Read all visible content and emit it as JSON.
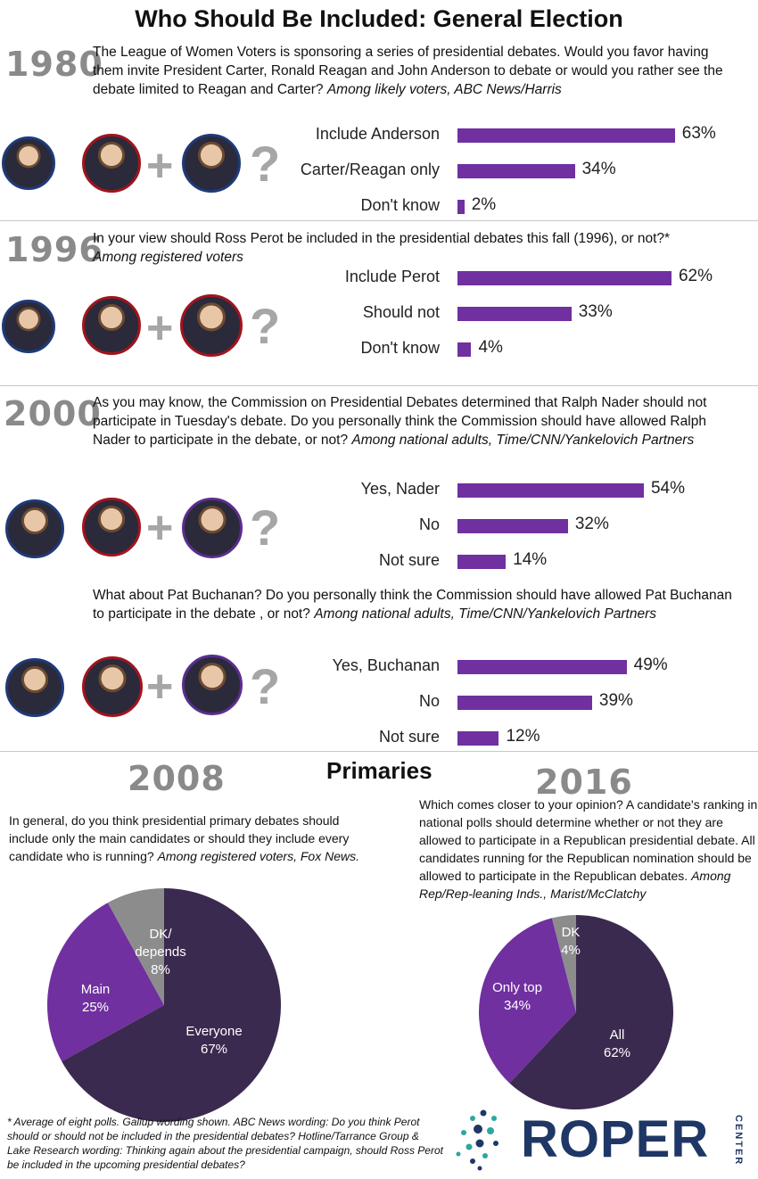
{
  "title": "Who Should Be Included: General Election",
  "sections": [
    {
      "year": "1980",
      "question": "The League of Women Voters is sponsoring a series of presidential debates. Would you favor having them invite President Carter, Ronald Reagan and John Anderson to debate or would you rather see the debate limited to Reagan and Carter?",
      "source": "Among likely voters, ABC News/Harris"
    },
    {
      "year": "1996",
      "question": "In your view should Ross Perot be included in the presidential debates this fall (1996), or not?*",
      "source": "Among registered voters"
    },
    {
      "year": "2000",
      "question": "As you may know, the Commission on Presidential Debates determined that Ralph Nader should not participate in Tuesday's debate. Do you personally think the Commission should have allowed Ralph Nader to participate in the debate, or not?",
      "source": "Among national adults, Time/CNN/Yankelovich Partners"
    },
    {
      "year": "",
      "question": "What about Pat Buchanan? Do you personally think the Commission should have allowed Pat Buchanan to participate in the debate , or not?",
      "source": "Among national adults, Time/CNN/Yankelovich Partners"
    }
  ],
  "primaries": {
    "title": "Primaries",
    "left_year": "2008",
    "left_question": "In general, do you think presidential primary debates should include only the main candidates or should they include every candidate who is running?",
    "left_source": "Among registered voters, Fox News.",
    "right_year": "2016",
    "right_question": "Which comes closer to your opinion? A candidate's ranking in national polls should determine whether or not they are allowed to participate in a Republican presidential debate. All candidates running for the Republican nomination should be allowed to participate in the Republican debates.",
    "right_source": "Among Rep/Rep-leaning Inds., Marist/McClatchy"
  },
  "chart_data": [
    {
      "type": "bar",
      "orientation": "horizontal",
      "categories": [
        "Include Anderson",
        "Carter/Reagan only",
        "Don't know"
      ],
      "values": [
        63,
        34,
        2
      ],
      "value_suffix": "%",
      "color": "#7030a0"
    },
    {
      "type": "bar",
      "orientation": "horizontal",
      "categories": [
        "Include Perot",
        "Should not",
        "Don't know"
      ],
      "values": [
        62,
        33,
        4
      ],
      "value_suffix": "%",
      "color": "#7030a0"
    },
    {
      "type": "bar",
      "orientation": "horizontal",
      "categories": [
        "Yes, Nader",
        "No",
        "Not sure"
      ],
      "values": [
        54,
        32,
        14
      ],
      "value_suffix": "%",
      "color": "#7030a0"
    },
    {
      "type": "bar",
      "orientation": "horizontal",
      "categories": [
        "Yes, Buchanan",
        "No",
        "Not sure"
      ],
      "values": [
        49,
        39,
        12
      ],
      "value_suffix": "%",
      "color": "#7030a0"
    },
    {
      "type": "pie",
      "slices": [
        {
          "label_line1": "Everyone",
          "label_line2": "67%",
          "value": 67,
          "color": "#3b2a4f"
        },
        {
          "label_line1": "Main",
          "label_line2": "25%",
          "value": 25,
          "color": "#7030a0"
        },
        {
          "label_line1": "DK/",
          "label_line2": "depends",
          "label_line3": "8%",
          "value": 8,
          "color": "#8c8c8c"
        }
      ]
    },
    {
      "type": "pie",
      "slices": [
        {
          "label_line1": "All",
          "label_line2": "62%",
          "value": 62,
          "color": "#3b2a4f"
        },
        {
          "label_line1": "Only top",
          "label_line2": "34%",
          "value": 34,
          "color": "#7030a0"
        },
        {
          "label_line1": "DK",
          "label_line2": "4%",
          "value": 4,
          "color": "#8c8c8c"
        }
      ]
    }
  ],
  "footnote": "* Average of eight polls. Gallup wording shown. ABC News wording: Do you think Perot should or should not be included in the presidential debates? Hotline/Tarrance Group & Lake Research wording: Thinking again about the presidential campaign, should Ross Perot be included in the upcoming presidential debates?",
  "logo": {
    "text": "ROPER",
    "sub": "CENTER"
  },
  "symbols": {
    "plus": "+",
    "question": "?"
  }
}
